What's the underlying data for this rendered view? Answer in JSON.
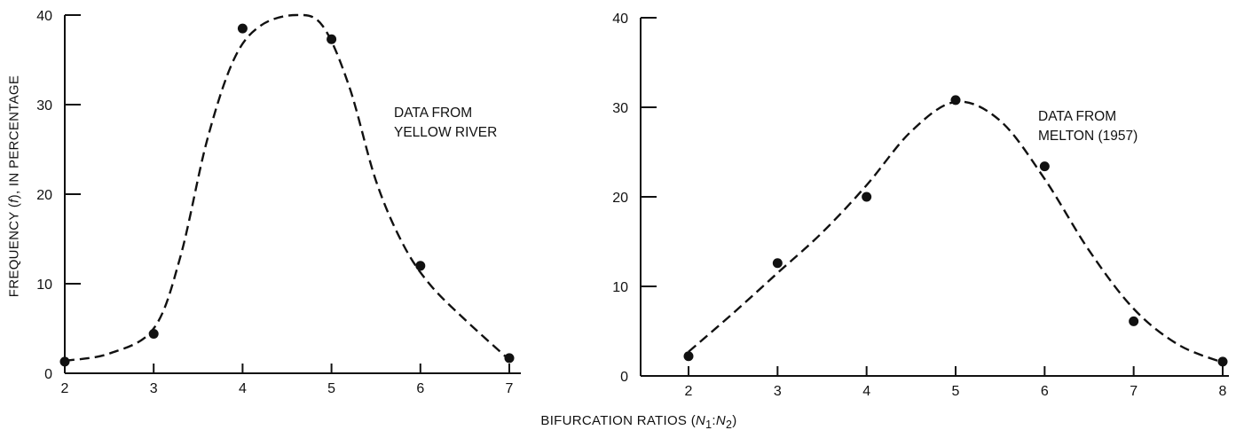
{
  "figure": {
    "ylabel": "FREQUENCY (f), IN PERCENTAGE",
    "xlabel": "BIFURCATION RATIOS (N1:N2)"
  },
  "chart_data": [
    {
      "type": "scatter",
      "title": "",
      "annotation_lines": [
        "DATA FROM",
        "YELLOW RIVER"
      ],
      "xlim": [
        2,
        7
      ],
      "ylim": [
        0,
        40
      ],
      "xticks": [
        2,
        3,
        4,
        5,
        6,
        7
      ],
      "yticks": [
        0,
        10,
        20,
        30,
        40
      ],
      "grid": false,
      "series": [
        {
          "x": [
            2,
            3,
            4,
            5,
            6,
            7
          ],
          "y": [
            1.3,
            4.4,
            38.5,
            37.3,
            12.0,
            1.7
          ]
        }
      ],
      "curve": {
        "style": "dashed",
        "x": [
          2,
          2.5,
          3,
          3.3,
          3.6,
          3.9,
          4.2,
          4.6,
          4.9,
          5.2,
          5.5,
          5.8,
          6.1,
          6.5,
          7
        ],
        "y": [
          1.4,
          2.2,
          5.0,
          13.0,
          26.0,
          35.0,
          38.8,
          40.0,
          38.8,
          32.0,
          21.5,
          14.5,
          10.0,
          6.0,
          1.5
        ]
      }
    },
    {
      "type": "scatter",
      "title": "",
      "annotation_lines": [
        "DATA FROM",
        "MELTON (1957)"
      ],
      "xlim": [
        1.5,
        8
      ],
      "ylim": [
        0,
        40
      ],
      "xticks": [
        2,
        3,
        4,
        5,
        6,
        7,
        8
      ],
      "yticks": [
        0,
        10,
        20,
        30,
        40
      ],
      "grid": false,
      "series": [
        {
          "x": [
            2,
            3,
            4,
            5,
            6,
            7,
            8
          ],
          "y": [
            2.2,
            12.6,
            20.0,
            30.8,
            23.4,
            6.1,
            1.6
          ]
        }
      ],
      "curve": {
        "style": "dashed",
        "x": [
          2,
          2.5,
          3,
          3.5,
          4,
          4.5,
          5,
          5.5,
          6,
          6.5,
          7,
          7.5,
          8
        ],
        "y": [
          2.7,
          7.0,
          11.5,
          16.0,
          21.3,
          27.3,
          30.6,
          28.5,
          22.0,
          14.0,
          7.5,
          3.5,
          1.5
        ]
      }
    }
  ]
}
